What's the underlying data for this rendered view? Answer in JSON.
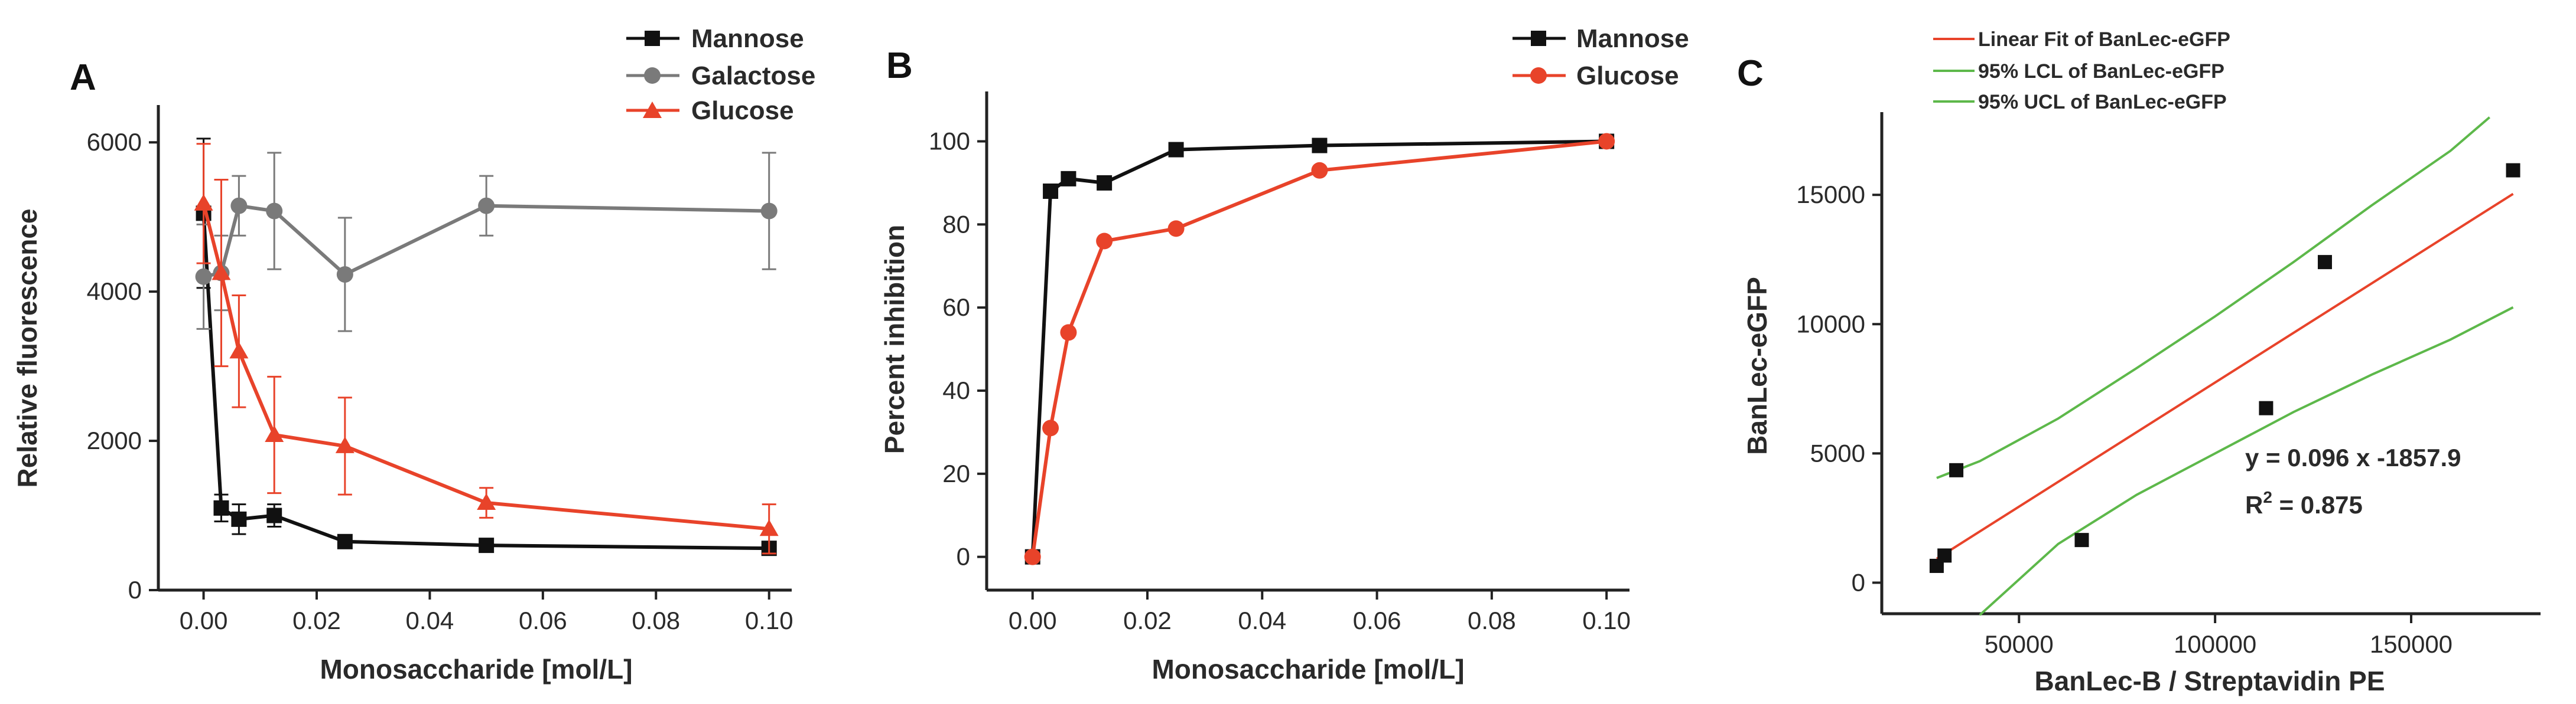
{
  "chart_data": [
    {
      "panel": "A",
      "type": "line",
      "xlabel": "Monosaccharide [mol/L]",
      "ylabel": "Relative fluorescence",
      "xlim": [
        -0.008,
        0.104
      ],
      "ylim": [
        0,
        6500
      ],
      "xticks": [
        0.0,
        0.02,
        0.04,
        0.06,
        0.08,
        0.1
      ],
      "xtick_labels": [
        "0.00",
        "0.02",
        "0.04",
        "0.06",
        "0.08",
        "0.10"
      ],
      "yticks": [
        0,
        2000,
        4000,
        6000
      ],
      "ytick_labels": [
        "0",
        "2000",
        "4000",
        "6000"
      ],
      "legend_position": "top-right",
      "series": [
        {
          "name": "Mannose",
          "color": "#111111",
          "marker": "square",
          "x": [
            0,
            0.003125,
            0.00625,
            0.0125,
            0.025,
            0.05,
            0.1
          ],
          "y": [
            5050,
            1100,
            950,
            1000,
            650,
            600,
            560
          ],
          "err": [
            1000,
            180,
            200,
            150,
            0,
            0,
            0
          ]
        },
        {
          "name": "Galactose",
          "color": "#7a7a7a",
          "marker": "circle",
          "x": [
            0,
            0.003125,
            0.00625,
            0.0125,
            0.025,
            0.05,
            0.1
          ],
          "y": [
            4200,
            4250,
            5150,
            5080,
            4230,
            5150,
            5080
          ],
          "err": [
            700,
            500,
            400,
            780,
            760,
            400,
            780
          ]
        },
        {
          "name": "Glucose",
          "color": "#e8432a",
          "marker": "triangle",
          "x": [
            0,
            0.003125,
            0.00625,
            0.0125,
            0.025,
            0.05,
            0.1
          ],
          "y": [
            5180,
            4250,
            3200,
            2080,
            1930,
            1170,
            820
          ],
          "err": [
            800,
            1250,
            750,
            780,
            650,
            200,
            330
          ]
        }
      ]
    },
    {
      "panel": "B",
      "type": "line",
      "xlabel": "Monosaccharide [mol/L]",
      "ylabel": "Percent inhibition",
      "xlim": [
        -0.008,
        0.104
      ],
      "ylim": [
        -8,
        112
      ],
      "xticks": [
        0.0,
        0.02,
        0.04,
        0.06,
        0.08,
        0.1
      ],
      "xtick_labels": [
        "0.00",
        "0.02",
        "0.04",
        "0.06",
        "0.08",
        "0.10"
      ],
      "yticks": [
        0,
        20,
        40,
        60,
        80,
        100
      ],
      "ytick_labels": [
        "0",
        "20",
        "40",
        "60",
        "80",
        "100"
      ],
      "legend_position": "top-right",
      "series": [
        {
          "name": "Mannose",
          "color": "#111111",
          "marker": "square",
          "x": [
            0,
            0.003125,
            0.00625,
            0.0125,
            0.025,
            0.05,
            0.1
          ],
          "y": [
            0,
            88,
            91,
            90,
            98,
            99,
            100
          ]
        },
        {
          "name": "Glucose",
          "color": "#e8432a",
          "marker": "circle",
          "x": [
            0,
            0.003125,
            0.00625,
            0.0125,
            0.025,
            0.05,
            0.1
          ],
          "y": [
            0,
            31,
            54,
            76,
            79,
            93,
            100
          ]
        }
      ]
    },
    {
      "panel": "C",
      "type": "scatter",
      "xlabel": "BanLec-B / Streptavidin PE",
      "ylabel": "BanLec-eGFP",
      "xlim": [
        15000,
        183000
      ],
      "ylim": [
        -1200,
        18200
      ],
      "xticks": [
        50000,
        100000,
        150000
      ],
      "xtick_labels": [
        "50000",
        "100000",
        "150000"
      ],
      "yticks": [
        0,
        5000,
        10000,
        15000
      ],
      "ytick_labels": [
        "0",
        "5000",
        "10000",
        "15000"
      ],
      "legend_position": "top-left",
      "points": {
        "name": "BanLec-eGFP",
        "color": "#111111",
        "x": [
          29000,
          31000,
          34000,
          66000,
          113000,
          128000,
          176000
        ],
        "y": [
          650,
          1050,
          4350,
          1650,
          6750,
          12400,
          15950
        ]
      },
      "fit": {
        "name": "Linear Fit of BanLec-eGFP",
        "color": "#e8432a",
        "slope": 0.096,
        "intercept": -1857.9,
        "x_range": [
          29000,
          176000
        ]
      },
      "lcl": {
        "name": "95% LCL of BanLec-eGFP",
        "color": "#5db84a",
        "x": [
          40000,
          60000,
          80000,
          100000,
          120000,
          140000,
          160000,
          176000
        ],
        "y": [
          -1250,
          1500,
          3400,
          5000,
          6600,
          8050,
          9400,
          10650
        ]
      },
      "ucl": {
        "name": "95% UCL of BanLec-eGFP",
        "color": "#5db84a",
        "x": [
          29000,
          40000,
          60000,
          80000,
          100000,
          120000,
          140000,
          160000,
          170000
        ],
        "y": [
          4050,
          4700,
          6350,
          8300,
          10300,
          12400,
          14600,
          16700,
          18000
        ]
      },
      "equation": "y = 0.096 x -1857.9",
      "r2_prefix": "R",
      "r2_sup": "2",
      "r2_suffix": " = 0.875"
    }
  ],
  "panels": {
    "a": "A",
    "b": "B",
    "c": "C"
  }
}
